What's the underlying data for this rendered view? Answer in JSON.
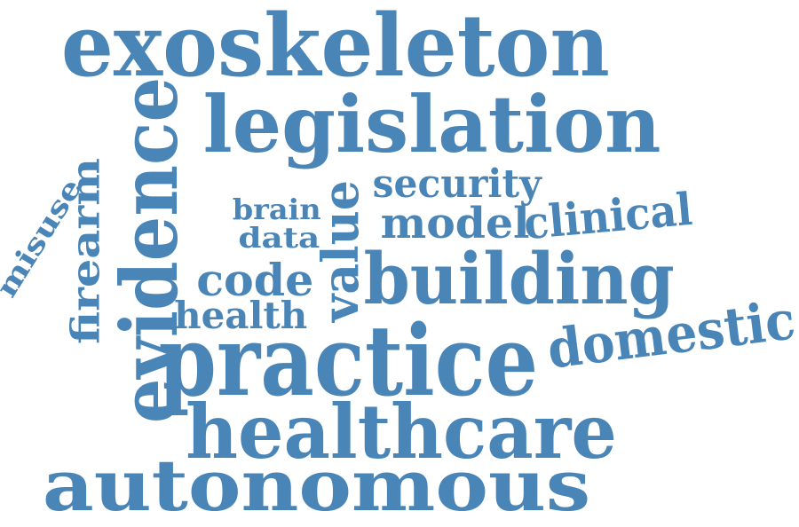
{
  "word_cloud": {
    "color": "#4a85b8",
    "words": [
      "exoskeleton",
      "legislation",
      "evidence",
      "practice",
      "healthcare",
      "autonomous",
      "building",
      "domestic",
      "value",
      "clinical",
      "model",
      "security",
      "brain",
      "data",
      "code",
      "health",
      "firearm",
      "misuse"
    ]
  }
}
